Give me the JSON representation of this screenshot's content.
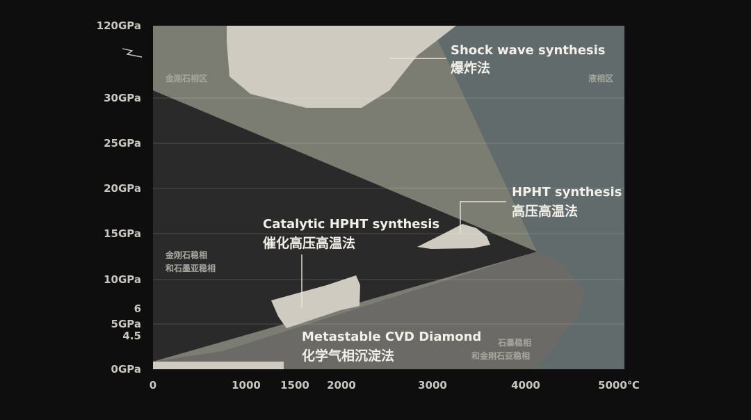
{
  "chart_data": {
    "type": "area",
    "title": "",
    "xlabel": "",
    "ylabel": "",
    "x_unit": "℃",
    "x_ticks": [
      "0",
      "1000",
      "1500",
      "2000",
      "3000",
      "4000",
      "5000℃"
    ],
    "y_ticks": [
      "0GPa",
      "4.5",
      "5GPa",
      "6",
      "10GPa",
      "15GPa",
      "20GPa",
      "25GPa",
      "30GPa",
      "120GPa"
    ],
    "regions": {
      "diamond_stable": "金刚石相区",
      "liquid": "液相区",
      "diamond_stable_graphite_metastable": [
        "金刚石稳相",
        "和石墨亚稳相"
      ],
      "graphite_stable_diamond_metastable": [
        "石墨稳相",
        "和金刚石亚稳相"
      ]
    },
    "methods": [
      {
        "en": "Shock wave synthesis",
        "zh": "爆炸法"
      },
      {
        "en": "HPHT synthesis",
        "zh": "高压高温法"
      },
      {
        "en": "Catalytic HPHT synthesis",
        "zh": "催化高压高温法"
      },
      {
        "en": "Metastable CVD Diamond",
        "zh": "化学气相沉淀法"
      }
    ],
    "colors": {
      "background": "#0e0e0e",
      "diamond_zone": "#7b7d72",
      "liquid_zone": "#616b6c",
      "dark_zone": "#2a2a2a",
      "graphite_zone": "#6b6a66",
      "method_blob": "#cfcbc1"
    }
  }
}
